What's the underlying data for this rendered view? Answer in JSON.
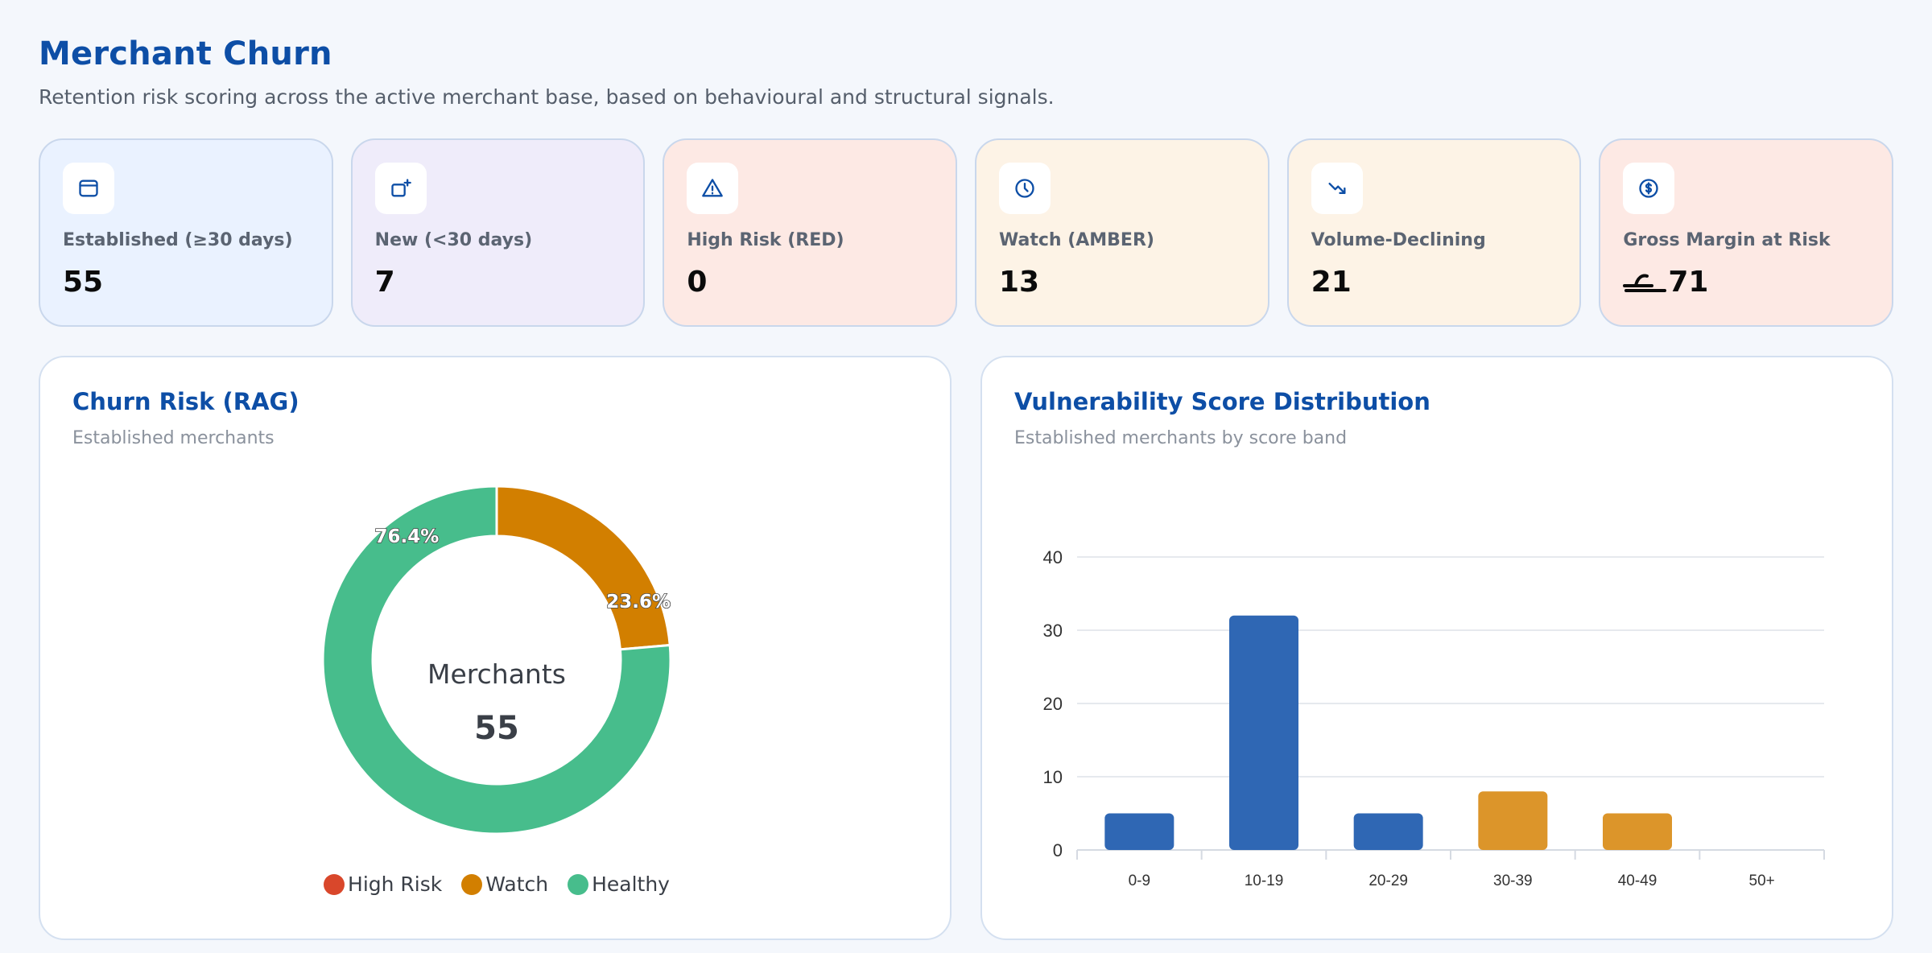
{
  "header": {
    "title": "Merchant Churn",
    "subtitle": "Retention risk scoring across the active merchant base, based on behavioural and structural signals."
  },
  "kpis": [
    {
      "label": "Established (≥30 days)",
      "value": "55",
      "bg": "#eaf2ff",
      "icon": "store-icon"
    },
    {
      "label": "New (<30 days)",
      "value": "7",
      "bg": "#efecfa",
      "icon": "new-store-icon"
    },
    {
      "label": "High Risk (RED)",
      "value": "0",
      "bg": "#fde9e4",
      "icon": "warning-icon"
    },
    {
      "label": "Watch (AMBER)",
      "value": "13",
      "bg": "#fdf3e6",
      "icon": "clock-icon"
    },
    {
      "label": "Volume-Declining",
      "value": "21",
      "bg": "#fdf3e6",
      "icon": "trend-down-icon"
    },
    {
      "label": "Gross Margin at Risk",
      "value": "71",
      "bg": "#fde9e4",
      "icon": "dollar-icon"
    }
  ],
  "donut_panel": {
    "title": "Churn Risk (RAG)",
    "subtitle": "Established merchants",
    "center_label": "Merchants",
    "center_value": "55"
  },
  "bar_panel": {
    "title": "Vulnerability Score Distribution",
    "subtitle": "Established merchants by score band"
  },
  "colors": {
    "accent": "#0d4ea6",
    "high_risk": "#d9472b",
    "watch": "#d27f00",
    "healthy": "#47bd8c",
    "bar_blue": "#2f67b4",
    "bar_amber": "#dc952a"
  },
  "chart_data": [
    {
      "type": "pie",
      "categories": [
        "High Risk",
        "Watch",
        "Healthy"
      ],
      "values": [
        0,
        13,
        42
      ],
      "percent_labels": [
        "",
        "23.6%",
        "76.4%"
      ],
      "colors": [
        "#d9472b",
        "#d27f00",
        "#47bd8c"
      ],
      "legend": "bottom"
    },
    {
      "type": "bar",
      "categories": [
        "0-9",
        "10-19",
        "20-29",
        "30-39",
        "40-49",
        "50+"
      ],
      "values": [
        5,
        32,
        5,
        8,
        5,
        0
      ],
      "colors": [
        "#2f67b4",
        "#2f67b4",
        "#2f67b4",
        "#dc952a",
        "#dc952a",
        "#dc952a"
      ],
      "yticks": [
        "0",
        "10",
        "20",
        "30",
        "40"
      ],
      "ylim": [
        0,
        40
      ],
      "grid": true
    }
  ]
}
